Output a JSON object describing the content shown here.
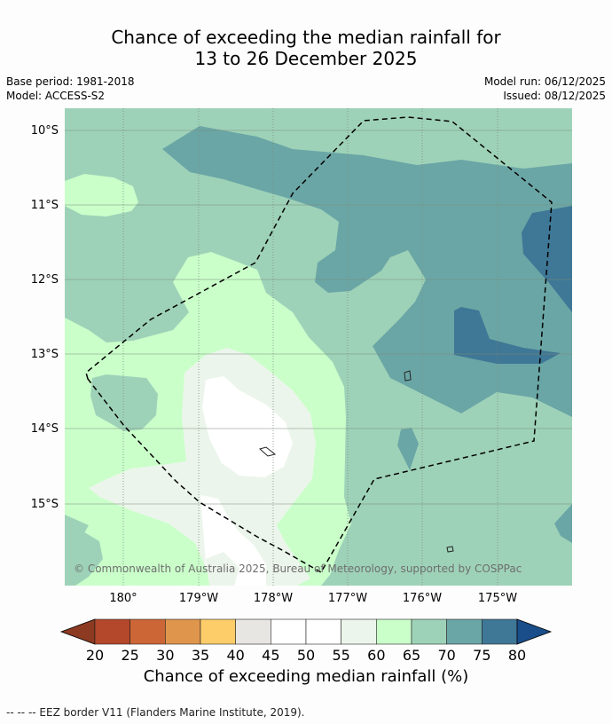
{
  "title_line1": "Chance of exceeding the median rainfall for",
  "title_line2": "13 to 26 December 2025",
  "base_period": "Base period: 1981-2018",
  "model": "Model: ACCESS-S2",
  "model_run": "Model run: 06/12/2025",
  "issued": "Issued: 08/12/2025",
  "lat_labels": [
    "10°S",
    "11°S",
    "12°S",
    "13°S",
    "14°S",
    "15°S"
  ],
  "lon_labels": [
    "180°",
    "179°W",
    "178°W",
    "177°W",
    "176°W",
    "175°W"
  ],
  "copyright": "© Commonwealth of Australia 2025, Bureau of Meteorology, supported by COSPPac",
  "colorbar": {
    "title": "Chance of exceeding median rainfall (%)",
    "ticks": [
      "20",
      "25",
      "30",
      "35",
      "40",
      "45",
      "50",
      "55",
      "60",
      "65",
      "70",
      "75",
      "80"
    ],
    "colors": [
      "#8c3a22",
      "#b4482a",
      "#cc6636",
      "#e0954c",
      "#fdcd6a",
      "#e8e6e3",
      "#ffffff",
      "#ffffff",
      "#ecf5eb",
      "#caffca",
      "#9ed2b8",
      "#6ba6a6",
      "#3f7796",
      "#1a4e8a"
    ]
  },
  "footer": "--  --  -- EEZ border V11 (Flanders Marine Institute, 2019)."
}
